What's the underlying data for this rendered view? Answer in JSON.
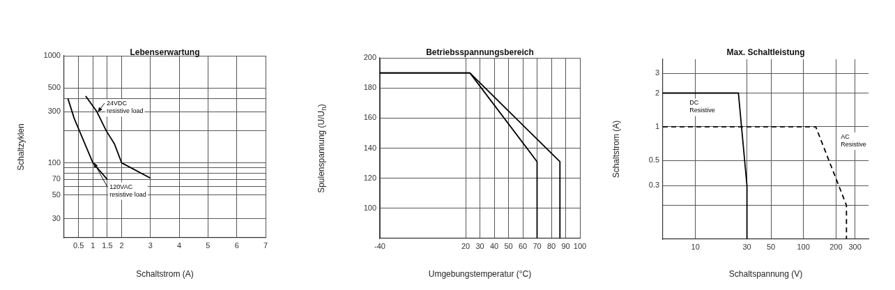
{
  "chart_data": [
    {
      "type": "line",
      "title": "Lebenserwartung",
      "xlabel": "Schaltstrom (A)",
      "ylabel": "Schaltzyklen",
      "log": "y",
      "xlim": [
        0,
        7
      ],
      "xticks": [
        0.5,
        1,
        1.5,
        2,
        3,
        4,
        5,
        6,
        7
      ],
      "ylim": [
        20,
        1000
      ],
      "yticks": [
        30,
        50,
        {
          "value": 60,
          "label": null
        },
        70,
        {
          "value": 80,
          "label": null
        },
        {
          "value": 90,
          "label": null
        },
        100,
        {
          "value": 200,
          "label": null
        },
        300,
        {
          "value": 400,
          "label": null
        },
        500,
        1000
      ],
      "grid": true,
      "marker": "none",
      "series": [
        {
          "name": "24VDC resistive load",
          "color": "#000000",
          "x": [
            0.75,
            1.14,
            1.46,
            1.75,
            2,
            3
          ],
          "values": [
            420,
            300,
            200,
            150,
            100,
            72
          ]
        },
        {
          "name": "120VAC resistive load",
          "color": "#000000",
          "x": [
            0.13,
            0.35,
            0.6,
            1,
            1.5
          ],
          "values": [
            400,
            260,
            180,
            100,
            70
          ]
        }
      ]
    },
    {
      "type": "line",
      "title": "Betriebsspannungsbereich",
      "xlabel": "Umgebungstemperatur (°C)",
      "ylabel": "Spulenspannung (U/U$_{n}$)",
      "xlim": [
        -40,
        100
      ],
      "xticks": [
        -40,
        20,
        30,
        40,
        50,
        60,
        70,
        80,
        90,
        100
      ],
      "ylim": [
        80,
        200
      ],
      "yticks": [
        100,
        120,
        140,
        160,
        180,
        200
      ],
      "grid": true,
      "marker": "none",
      "series": [
        {
          "color": "#000000",
          "x": [
            -40,
            23,
            70,
            70
          ],
          "values": [
            190,
            190,
            131,
            80
          ]
        },
        {
          "color": "#000000",
          "x": [
            -40,
            23,
            86,
            86
          ],
          "values": [
            190,
            190,
            131,
            80
          ]
        }
      ]
    },
    {
      "type": "line",
      "title": "Max. Schaltleistung",
      "xlabel": "Schaltspannung (V)",
      "ylabel": "Schaltstrom (A)",
      "log": "xy",
      "xlim": [
        5,
        400
      ],
      "xticks": [
        10,
        30,
        50,
        100,
        200,
        300
      ],
      "ylim": [
        0.1,
        4
      ],
      "yticks": [
        {
          "value": 0.2,
          "label": null
        },
        0.3,
        0.5,
        1,
        2,
        3
      ],
      "grid": true,
      "marker": "none",
      "series": [
        {
          "name": "DC Resistive",
          "color": "#000000",
          "x": [
            5,
            25,
            30,
            30
          ],
          "values": [
            2,
            2,
            0.3,
            0.1
          ]
        },
        {
          "name": "AC Resistive",
          "color": "#000000",
          "line_style": "dashed",
          "x": [
            5,
            130,
            250,
            250
          ],
          "values": [
            1,
            1,
            0.2,
            0.1
          ]
        }
      ]
    }
  ]
}
